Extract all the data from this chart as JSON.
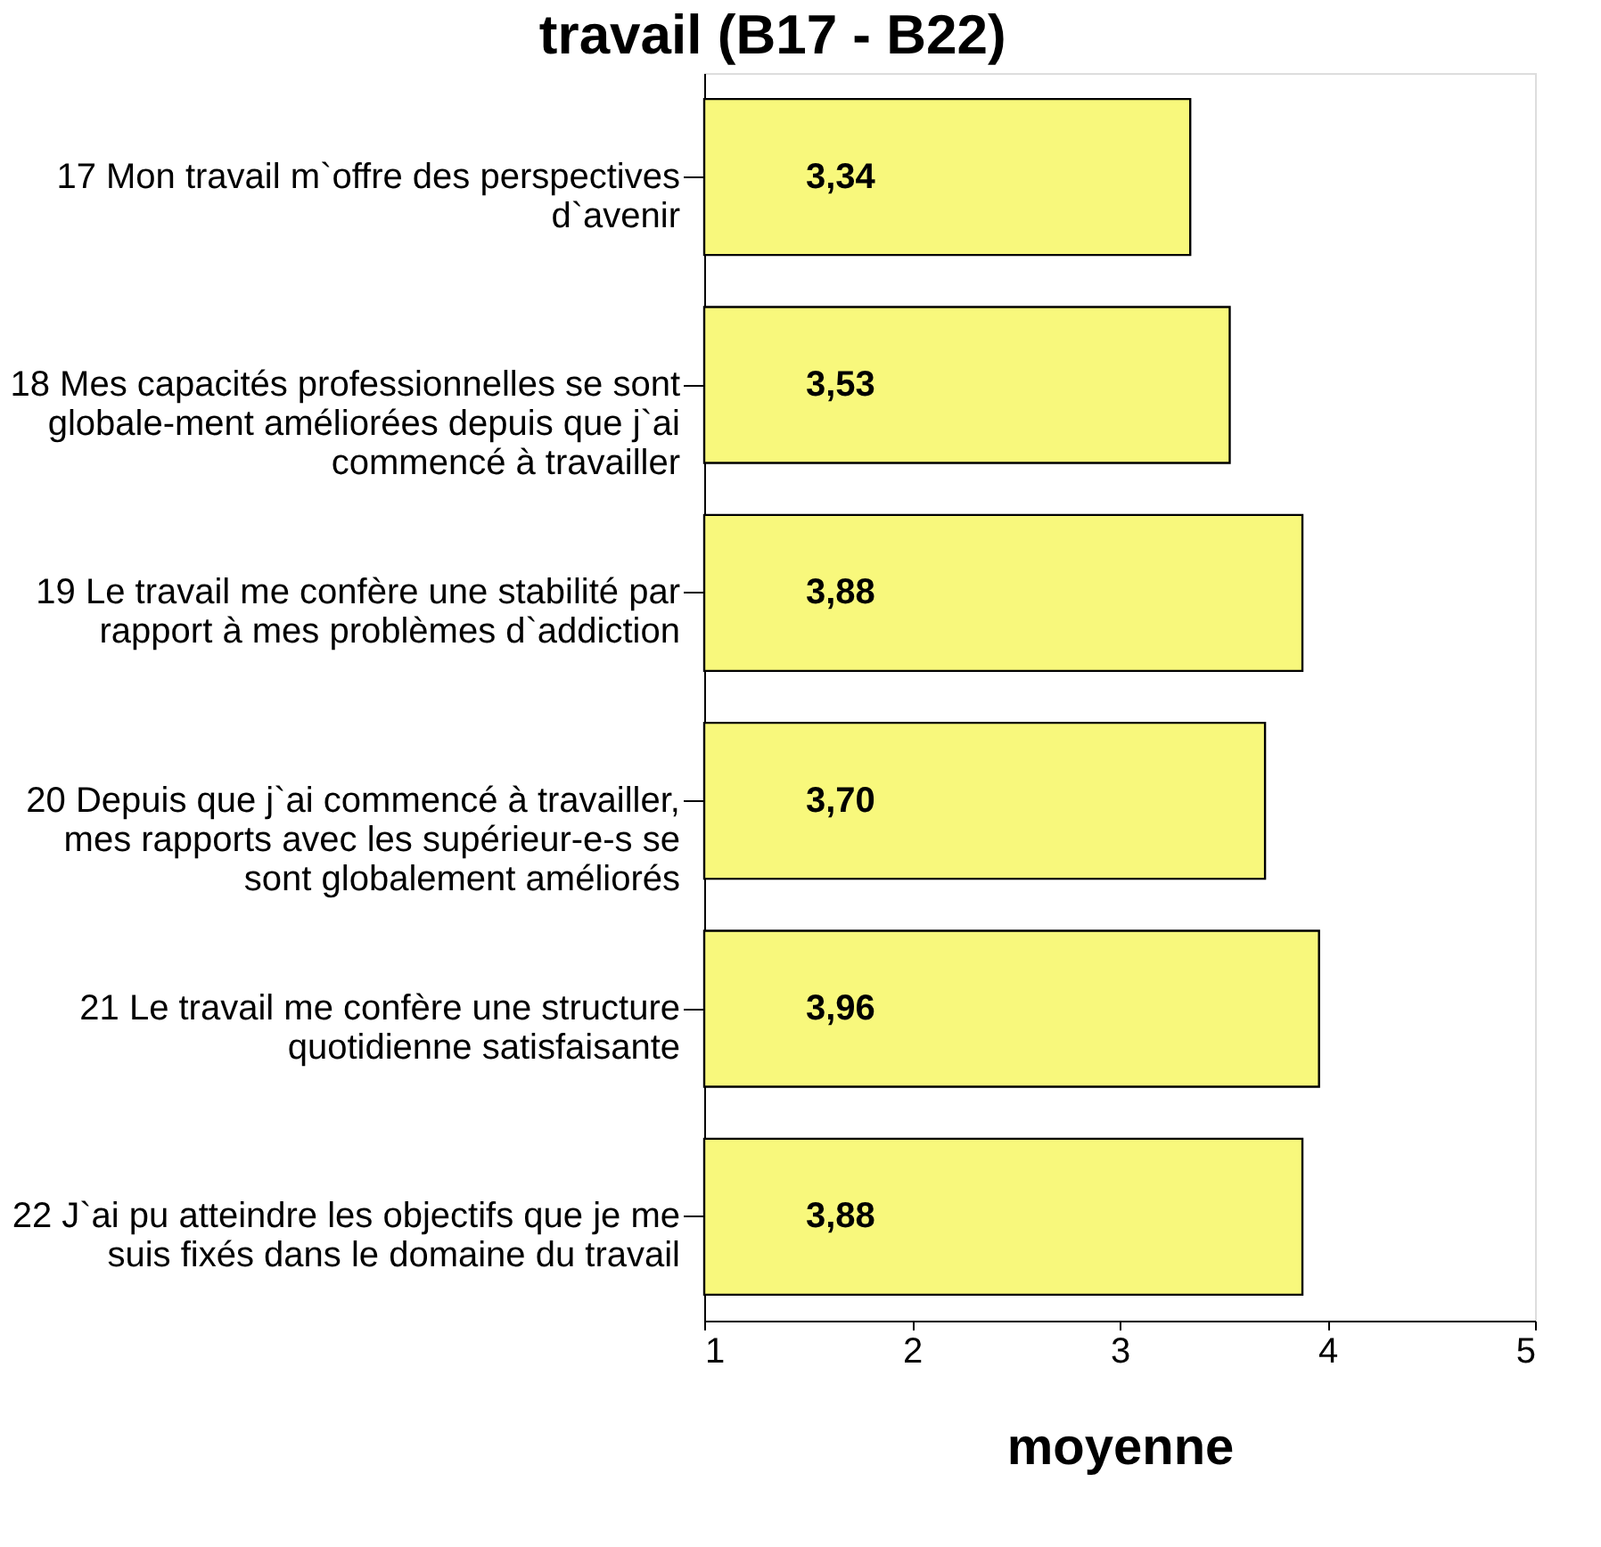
{
  "chart_data": {
    "type": "bar",
    "orientation": "horizontal",
    "title": "travail (B17 - B22)",
    "xlabel": "moyenne",
    "categories": [
      "17 Mon travail m`offre des perspectives\nd`avenir",
      "18 Mes capacités professionnelles se sont\nglobale-ment améliorées depuis que j`ai\ncommencé à travailler",
      "19 Le travail me confère une stabilité par\nrapport à mes problèmes d`addiction",
      "20 Depuis que j`ai commencé à travailler,\nmes rapports avec les supérieur-e-s se\nsont globalement améliorés",
      "21 Le travail me confère une structure\nquotidienne satisfaisante",
      "22 J`ai pu atteindre les objectifs que je me\nsuis fixés dans le domaine du travail"
    ],
    "values": [
      3.34,
      3.53,
      3.88,
      3.7,
      3.96,
      3.88
    ],
    "value_labels": [
      "3,34",
      "3,53",
      "3,88",
      "3,70",
      "3,96",
      "3,88"
    ],
    "color": "#f8f87c",
    "xlim": [
      1,
      5
    ],
    "xticks": [
      1,
      2,
      3,
      4,
      5
    ],
    "grid": false
  }
}
